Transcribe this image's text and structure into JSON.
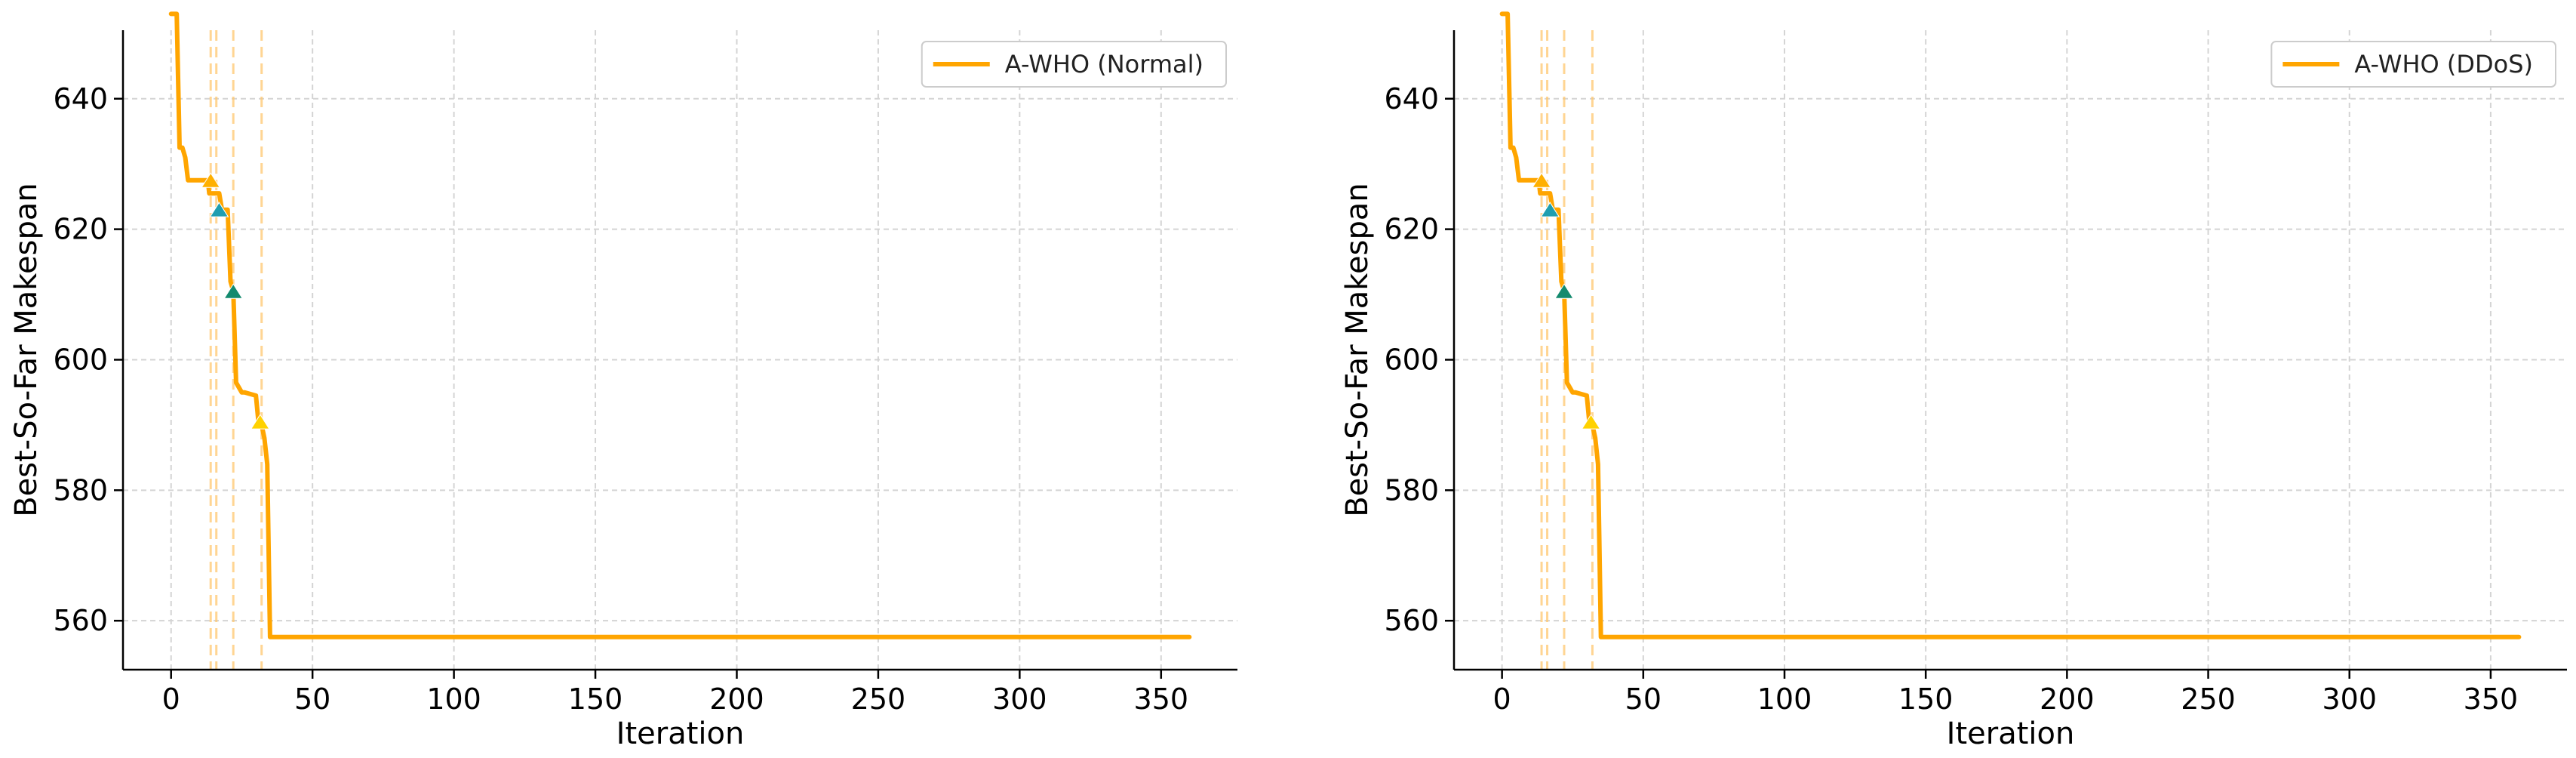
{
  "chart_data": [
    {
      "type": "line",
      "title": "",
      "xlabel": "Iteration",
      "ylabel": "Best-So-Far Makespan",
      "xlim": [
        -17,
        377
      ],
      "ylim": [
        552.5,
        650.5
      ],
      "xticks": [
        0,
        50,
        100,
        150,
        200,
        250,
        300,
        350
      ],
      "yticks": [
        560,
        580,
        600,
        620,
        640
      ],
      "grid": true,
      "legend_position": "top-right",
      "series": [
        {
          "name": "A-WHO (Normal)",
          "color": "#FFA500",
          "x": [
            0,
            2,
            3,
            4,
            5,
            6,
            13,
            13.5,
            17,
            18,
            20,
            21,
            22,
            23,
            25,
            26,
            30,
            31,
            32,
            33,
            34,
            35,
            360
          ],
          "y": [
            653,
            653,
            632.5,
            632.5,
            631,
            627.5,
            627.5,
            625.5,
            625.5,
            623,
            623,
            612,
            610.5,
            596.5,
            595,
            595,
            594.5,
            590,
            590,
            588,
            584,
            557.5,
            557.5
          ]
        }
      ],
      "markers": [
        {
          "x": 14,
          "y": 627.5,
          "color": "#FFB000",
          "shape": "triangle"
        },
        {
          "x": 17,
          "y": 623,
          "color": "#1F9EB0",
          "shape": "triangle"
        },
        {
          "x": 22,
          "y": 610.5,
          "color": "#138A6E",
          "shape": "triangle"
        },
        {
          "x": 31.5,
          "y": 590.5,
          "color": "#FFD200",
          "shape": "triangle"
        }
      ],
      "vlines": [
        14,
        16,
        22,
        32
      ]
    },
    {
      "type": "line",
      "title": "",
      "xlabel": "Iteration",
      "ylabel": "Best-So-Far Makespan",
      "xlim": [
        -17,
        377
      ],
      "ylim": [
        552.5,
        650.5
      ],
      "xticks": [
        0,
        50,
        100,
        150,
        200,
        250,
        300,
        350
      ],
      "yticks": [
        560,
        580,
        600,
        620,
        640
      ],
      "grid": true,
      "legend_position": "top-right",
      "series": [
        {
          "name": "A-WHO (DDoS)",
          "color": "#FFA500",
          "x": [
            0,
            2,
            3,
            4,
            5,
            6,
            13,
            13.5,
            17,
            18,
            20,
            21,
            22,
            23,
            25,
            26,
            30,
            31,
            32,
            33,
            34,
            35,
            360
          ],
          "y": [
            653,
            653,
            632.5,
            632.5,
            631,
            627.5,
            627.5,
            625.5,
            625.5,
            623,
            623,
            612,
            610.5,
            596.5,
            595,
            595,
            594.5,
            590,
            590,
            588,
            584,
            557.5,
            557.5
          ]
        }
      ],
      "markers": [
        {
          "x": 14,
          "y": 627.5,
          "color": "#FFB000",
          "shape": "triangle"
        },
        {
          "x": 17,
          "y": 623,
          "color": "#1F9EB0",
          "shape": "triangle"
        },
        {
          "x": 22,
          "y": 610.5,
          "color": "#138A6E",
          "shape": "triangle"
        },
        {
          "x": 31.5,
          "y": 590.5,
          "color": "#FFD200",
          "shape": "triangle"
        }
      ],
      "vlines": [
        14,
        16,
        22,
        32
      ]
    }
  ]
}
